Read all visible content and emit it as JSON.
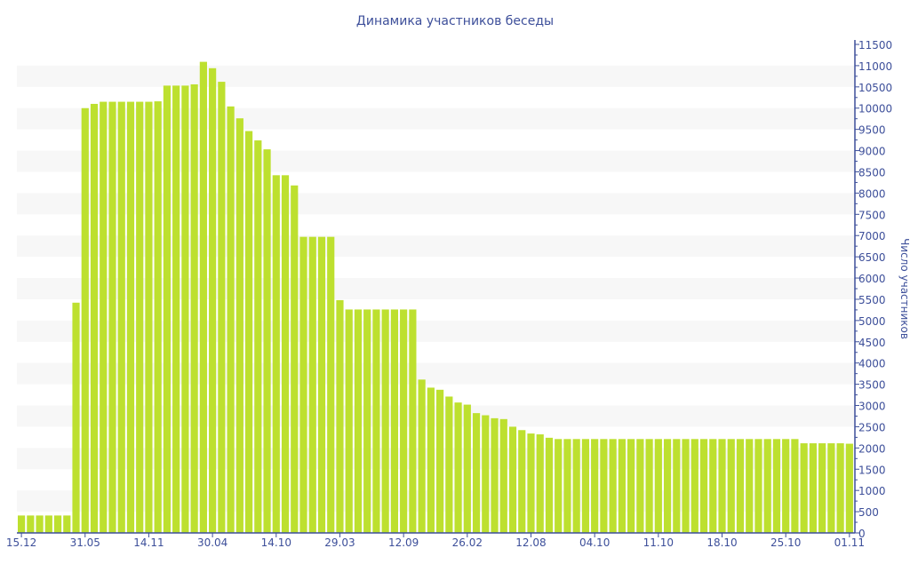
{
  "chart_data": {
    "type": "bar",
    "title": "Динамика участников беседы",
    "xlabel": "",
    "ylabel": "Число участников",
    "ylim": [
      0,
      11500
    ],
    "ytick_step": 500,
    "grid": "alternating horizontal bands",
    "y_axis_side": "right",
    "x_tick_every": 7,
    "x_tick_labels": [
      "15.12",
      "31.05",
      "14.11",
      "30.04",
      "14.10",
      "29.03",
      "12.09",
      "26.02",
      "12.08",
      "04.10",
      "11.10",
      "18.10",
      "25.10",
      "01.11"
    ],
    "values": [
      410,
      410,
      410,
      410,
      410,
      410,
      5420,
      10000,
      10100,
      10150,
      10150,
      10150,
      10150,
      10150,
      10150,
      10160,
      10530,
      10530,
      10530,
      10560,
      11090,
      10940,
      10620,
      10040,
      9760,
      9460,
      9240,
      9030,
      8420,
      8420,
      8180,
      6970,
      6970,
      6970,
      6970,
      5480,
      5260,
      5260,
      5260,
      5260,
      5260,
      5260,
      5260,
      5260,
      3610,
      3420,
      3370,
      3210,
      3070,
      3020,
      2820,
      2770,
      2700,
      2680,
      2500,
      2420,
      2340,
      2320,
      2240,
      2210,
      2210,
      2210,
      2210,
      2210,
      2210,
      2210,
      2210,
      2210,
      2210,
      2210,
      2210,
      2210,
      2210,
      2210,
      2210,
      2210,
      2210,
      2210,
      2210,
      2210,
      2210,
      2210,
      2210,
      2210,
      2210,
      2210,
      2110,
      2110,
      2110,
      2110,
      2110,
      2100
    ],
    "colors": {
      "bar": "#bde02f",
      "axis": "#3d4f9a",
      "band": "#f7f7f7"
    }
  }
}
